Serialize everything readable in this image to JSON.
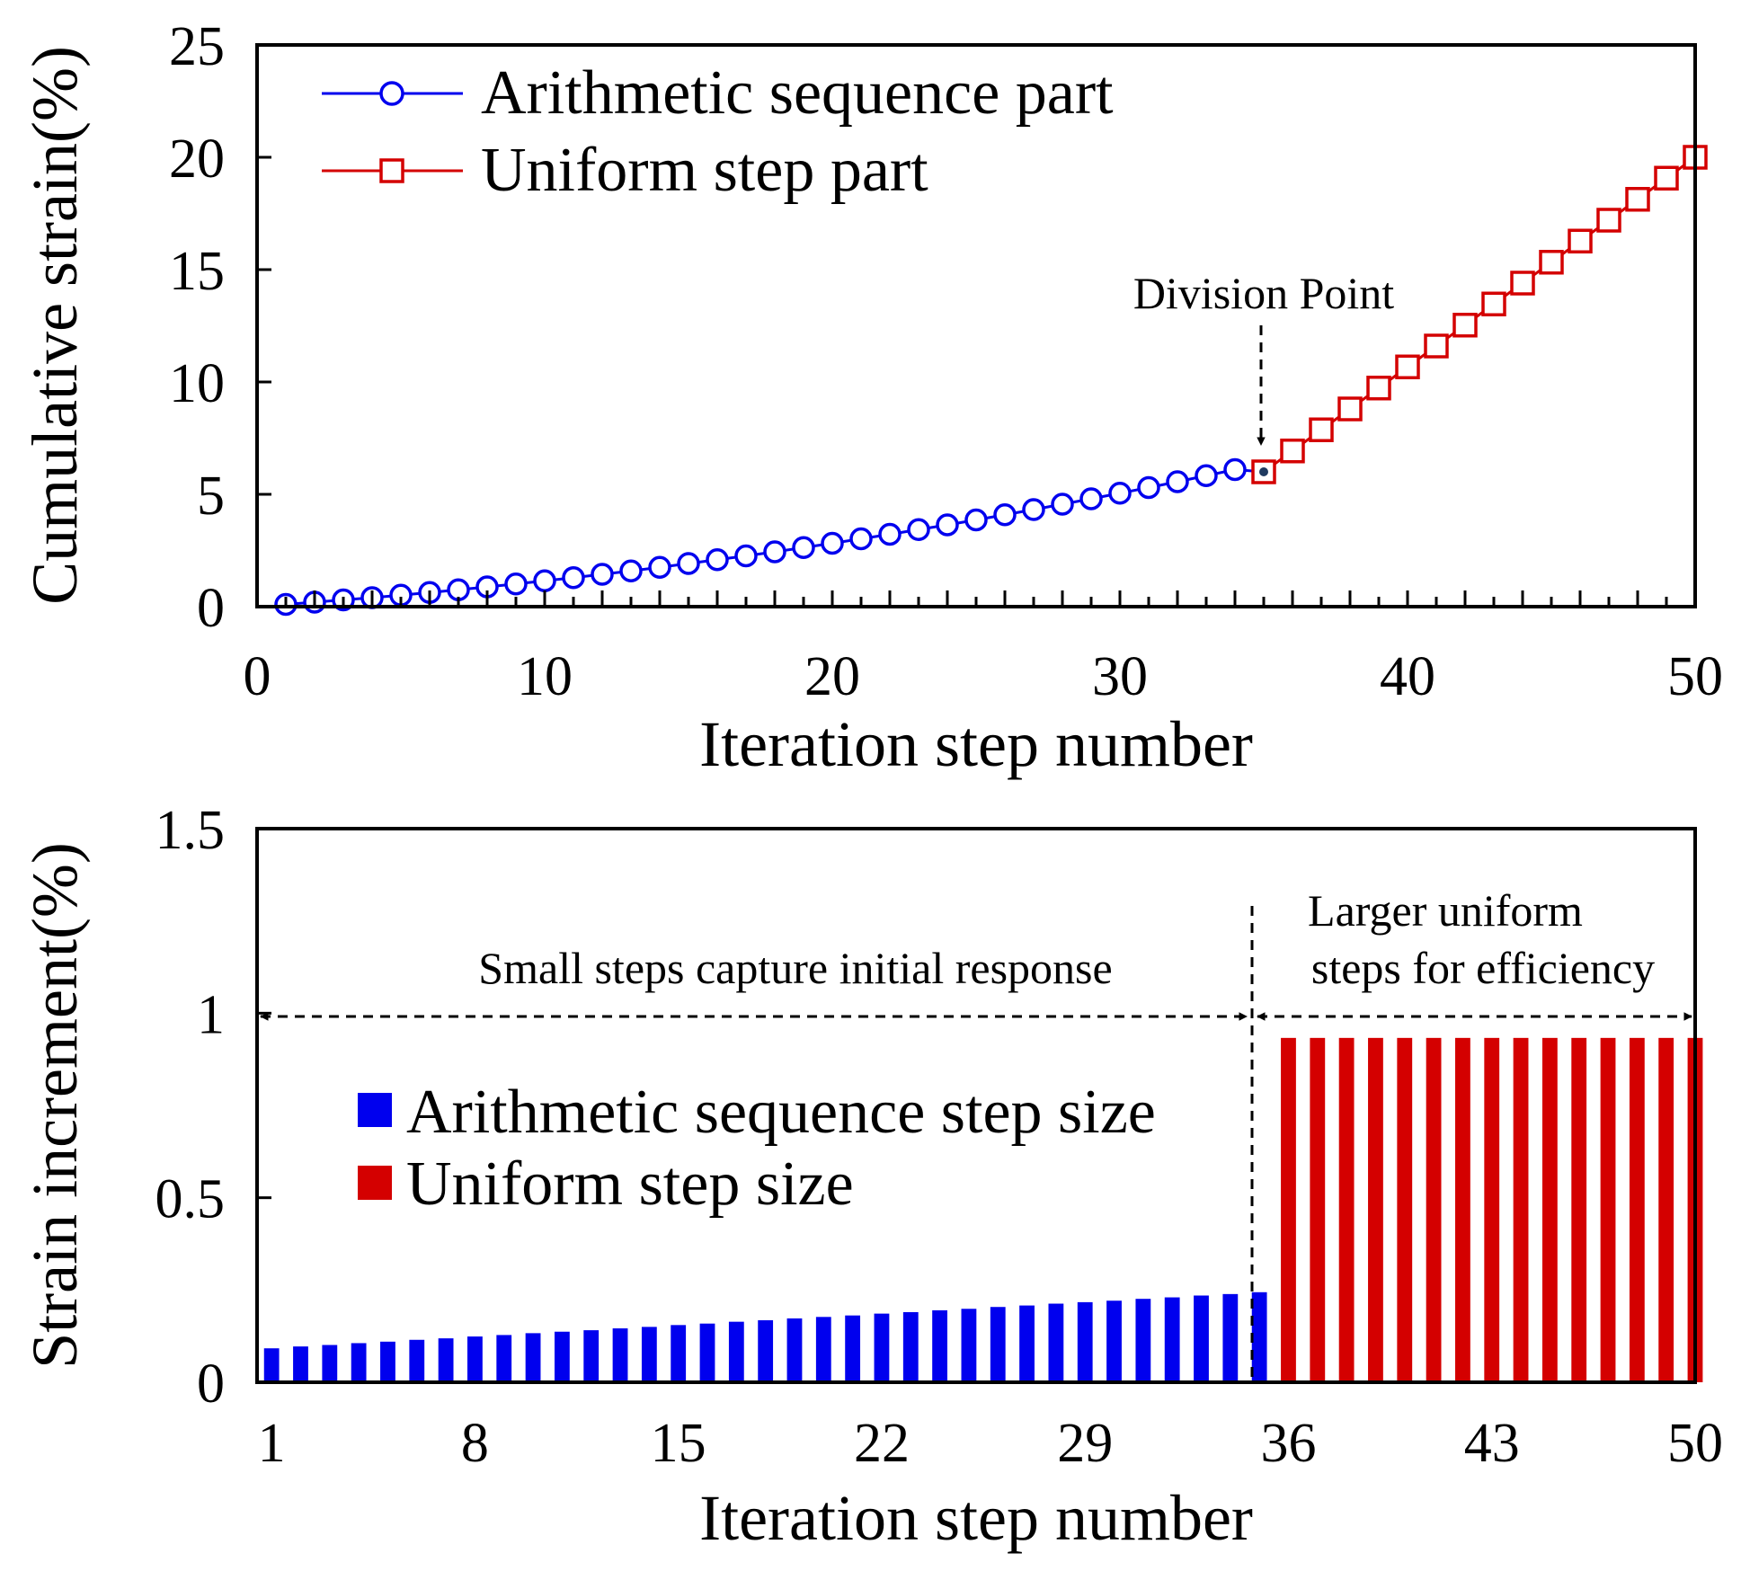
{
  "chart_data": [
    {
      "type": "line",
      "xlabel": "Iteration step number",
      "ylabel": "Cumulative strain(%)",
      "xlim": [
        0,
        50
      ],
      "ylim": [
        0,
        25
      ],
      "xticks": [
        0,
        10,
        20,
        30,
        40,
        50
      ],
      "yticks": [
        0,
        5,
        10,
        15,
        20,
        25
      ],
      "xtick_labels": [
        "0",
        "10",
        "20",
        "30",
        "40",
        "50"
      ],
      "ytick_labels": [
        "0",
        "5",
        "10",
        "15",
        "20",
        "25"
      ],
      "grid": false,
      "legend_position": "top-left",
      "colors": {
        "arithmetic": "#0000ee",
        "uniform": "#d40000",
        "division_marker": "#1f3a60"
      },
      "series": [
        {
          "name": "Arithmetic sequence part",
          "marker": "circle",
          "x": [
            1,
            2,
            3,
            4,
            5,
            6,
            7,
            8,
            9,
            10,
            11,
            12,
            13,
            14,
            15,
            16,
            17,
            18,
            19,
            20,
            21,
            22,
            23,
            24,
            25,
            26,
            27,
            28,
            29,
            30,
            31,
            32,
            33,
            34,
            35
          ],
          "y": [
            0.1,
            0.2,
            0.3,
            0.4,
            0.51,
            0.63,
            0.75,
            0.88,
            1.01,
            1.15,
            1.29,
            1.44,
            1.59,
            1.75,
            1.92,
            2.09,
            2.26,
            2.44,
            2.63,
            2.82,
            3.02,
            3.22,
            3.43,
            3.64,
            3.86,
            4.09,
            4.32,
            4.56,
            4.8,
            5.05,
            5.3,
            5.56,
            5.83,
            6.1,
            6.0
          ]
        },
        {
          "name": "Uniform step part",
          "marker": "square",
          "x": [
            35,
            36,
            37,
            38,
            39,
            40,
            41,
            42,
            43,
            44,
            45,
            46,
            47,
            48,
            49,
            50
          ],
          "y": [
            6.0,
            6.93,
            7.87,
            8.8,
            9.73,
            10.67,
            11.6,
            12.53,
            13.47,
            14.4,
            15.33,
            16.27,
            17.2,
            18.13,
            19.07,
            20.0
          ]
        }
      ],
      "annotations": [
        {
          "text": "Division Point",
          "x": 35,
          "y": 6.0
        }
      ]
    },
    {
      "type": "bar",
      "xlabel": "Iteration step number",
      "ylabel": "Strain increment(%)",
      "xlim": [
        1,
        50
      ],
      "ylim": [
        0,
        1.5
      ],
      "xticks": [
        1,
        8,
        15,
        22,
        29,
        36,
        43,
        50
      ],
      "yticks": [
        0,
        0.5,
        1,
        1.5
      ],
      "xtick_labels": [
        "1",
        "8",
        "15",
        "22",
        "29",
        "36",
        "43",
        "50"
      ],
      "ytick_labels": [
        "0",
        "0.5",
        "1",
        "1.5"
      ],
      "grid": false,
      "legend_position": "center-left",
      "colors": {
        "arithmetic": "#0000ee",
        "uniform": "#d40000"
      },
      "series": [
        {
          "name": "Arithmetic sequence step size",
          "x": [
            1,
            2,
            3,
            4,
            5,
            6,
            7,
            8,
            9,
            10,
            11,
            12,
            13,
            14,
            15,
            16,
            17,
            18,
            19,
            20,
            21,
            22,
            23,
            24,
            25,
            26,
            27,
            28,
            29,
            30,
            31,
            32,
            33,
            34,
            35
          ],
          "values": [
            0.092,
            0.097,
            0.101,
            0.106,
            0.11,
            0.115,
            0.119,
            0.124,
            0.128,
            0.133,
            0.137,
            0.141,
            0.146,
            0.15,
            0.155,
            0.159,
            0.164,
            0.168,
            0.173,
            0.177,
            0.181,
            0.186,
            0.19,
            0.195,
            0.199,
            0.204,
            0.208,
            0.213,
            0.217,
            0.221,
            0.226,
            0.23,
            0.235,
            0.239,
            0.244
          ]
        },
        {
          "name": "Uniform step size",
          "x": [
            36,
            37,
            38,
            39,
            40,
            41,
            42,
            43,
            44,
            45,
            46,
            47,
            48,
            49,
            50
          ],
          "values": [
            0.933,
            0.933,
            0.933,
            0.933,
            0.933,
            0.933,
            0.933,
            0.933,
            0.933,
            0.933,
            0.933,
            0.933,
            0.933,
            0.933,
            0.933
          ]
        }
      ],
      "divider_x": 35.5,
      "annotations": [
        {
          "text": "Small steps capture initial response",
          "range": [
            1,
            35.5
          ],
          "y": 1.0
        },
        {
          "text": "Larger uniform",
          "range": [
            35.5,
            50
          ],
          "y": 1.0
        },
        {
          "text": "steps for efficiency",
          "range": [
            35.5,
            50
          ],
          "y": 1.0
        }
      ]
    }
  ]
}
